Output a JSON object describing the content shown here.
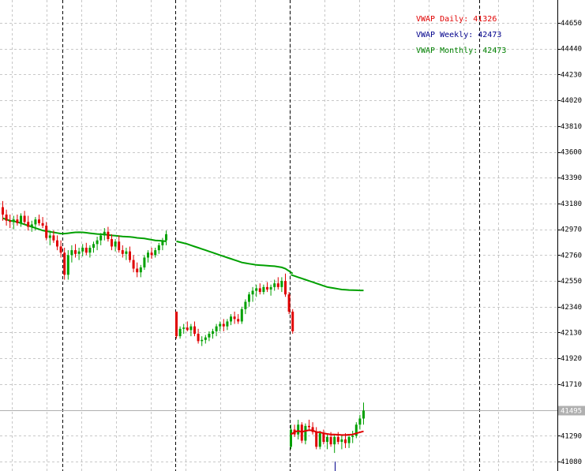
{
  "legend": [
    {
      "label": "VWAP Daily: 41326",
      "color": "#e00000"
    },
    {
      "label": "VWAP Weekly: 42473",
      "color": "#00008b"
    },
    {
      "label": "VWAP Monthly: 42473",
      "color": "#008000"
    }
  ],
  "current_price_label": "41495",
  "colors": {
    "bull": "#00a000",
    "bear": "#e00000",
    "vwap_daily": "#e00000",
    "vwap_monthly": "#00a000",
    "grid": "#c8c8c8",
    "session": "#000000",
    "price_line": "#b0b0b0",
    "price_label_bg": "#b0b0b0"
  },
  "chart_data": {
    "type": "candlestick",
    "y_ticks": [
      44650,
      44440,
      44230,
      44020,
      43810,
      43600,
      43390,
      43180,
      42970,
      42760,
      42550,
      42340,
      42130,
      41920,
      41710,
      41500,
      41290,
      41080
    ],
    "y_ticks_shown": [
      "44650",
      "44440",
      "44230",
      "44020",
      "43810",
      "43600",
      "43390",
      "43180",
      "42970",
      "42760",
      "42550",
      "42340",
      "42130",
      "41920",
      "41710",
      "41290",
      "41080"
    ],
    "ylim": [
      41050,
      44720
    ],
    "grid": true,
    "current_price": 41495,
    "session_breaks": [
      1,
      2,
      3,
      4
    ],
    "sessions": [
      {
        "candles": [
          [
            43150,
            43200,
            43040,
            43090
          ],
          [
            43090,
            43130,
            43000,
            43040
          ],
          [
            43040,
            43090,
            42980,
            43030
          ],
          [
            43030,
            43080,
            42970,
            43050
          ],
          [
            43050,
            43090,
            43000,
            43020
          ],
          [
            43020,
            43100,
            42990,
            43080
          ],
          [
            43080,
            43120,
            43010,
            43030
          ],
          [
            43030,
            43080,
            42960,
            42990
          ],
          [
            42990,
            43040,
            42950,
            43010
          ],
          [
            43010,
            43070,
            42960,
            43050
          ],
          [
            43050,
            43090,
            43000,
            43020
          ],
          [
            43020,
            43070,
            42980,
            43000
          ],
          [
            43000,
            43030,
            42880,
            42900
          ],
          [
            42900,
            42960,
            42840,
            42920
          ],
          [
            42920,
            42960,
            42860,
            42880
          ],
          [
            42880,
            42920,
            42800,
            42830
          ],
          [
            42830,
            42880,
            42740,
            42780
          ],
          [
            42780,
            42820,
            42560,
            42600
          ],
          [
            42600,
            42800,
            42560,
            42760
          ],
          [
            42760,
            42840,
            42700,
            42800
          ],
          [
            42800,
            42850,
            42740,
            42770
          ],
          [
            42770,
            42820,
            42720,
            42790
          ],
          [
            42790,
            42850,
            42750,
            42820
          ],
          [
            42820,
            42860,
            42760,
            42780
          ],
          [
            42780,
            42840,
            42740,
            42820
          ],
          [
            42820,
            42870,
            42780,
            42850
          ],
          [
            42850,
            42910,
            42800,
            42880
          ],
          [
            42880,
            42940,
            42840,
            42920
          ],
          [
            42920,
            42980,
            42880,
            42950
          ],
          [
            42950,
            42990,
            42870,
            42890
          ],
          [
            42890,
            42930,
            42800,
            42830
          ],
          [
            42830,
            42890,
            42790,
            42870
          ],
          [
            42870,
            42920,
            42780,
            42800
          ],
          [
            42800,
            42840,
            42740,
            42770
          ],
          [
            42770,
            42820,
            42720,
            42790
          ],
          [
            42790,
            42830,
            42700,
            42720
          ],
          [
            42720,
            42760,
            42620,
            42650
          ],
          [
            42650,
            42700,
            42580,
            42620
          ],
          [
            42620,
            42680,
            42580,
            42660
          ],
          [
            42660,
            42760,
            42640,
            42740
          ],
          [
            42740,
            42800,
            42700,
            42780
          ],
          [
            42780,
            42820,
            42730,
            42760
          ],
          [
            42760,
            42820,
            42740,
            42800
          ],
          [
            42800,
            42860,
            42770,
            42840
          ],
          [
            42840,
            42900,
            42800,
            42880
          ],
          [
            42880,
            42960,
            42840,
            42930
          ]
        ],
        "vwap_monthly": [
          43060,
          43050,
          43040,
          43035,
          43030,
          43020,
          43010,
          43000,
          42990,
          42980,
          42970,
          42960,
          42955,
          42950,
          42945,
          42940,
          42935,
          42935,
          42938,
          42942,
          42945,
          42946,
          42945,
          42942,
          42938,
          42935,
          42932,
          42930,
          42928,
          42925,
          42920,
          42918,
          42915,
          42912,
          42910,
          42908,
          42905,
          42900,
          42898,
          42895,
          42890,
          42885,
          42880,
          42878,
          42875,
          42872
        ]
      },
      {
        "candles": [
          [
            42300,
            42300,
            42080,
            42100
          ],
          [
            42100,
            42180,
            42080,
            42160
          ],
          [
            42160,
            42200,
            42120,
            42170
          ],
          [
            42170,
            42220,
            42140,
            42150
          ],
          [
            42150,
            42200,
            42100,
            42180
          ],
          [
            42180,
            42220,
            42100,
            42120
          ],
          [
            42120,
            42160,
            42040,
            42060
          ],
          [
            42060,
            42100,
            42020,
            42070
          ],
          [
            42070,
            42110,
            42040,
            42090
          ],
          [
            42090,
            42140,
            42060,
            42120
          ],
          [
            42120,
            42160,
            42080,
            42140
          ],
          [
            42140,
            42200,
            42100,
            42180
          ],
          [
            42180,
            42220,
            42140,
            42200
          ],
          [
            42200,
            42240,
            42140,
            42180
          ],
          [
            42180,
            42240,
            42150,
            42220
          ],
          [
            42220,
            42280,
            42190,
            42260
          ],
          [
            42260,
            42300,
            42200,
            42240
          ],
          [
            42240,
            42280,
            42200,
            42220
          ],
          [
            42220,
            42340,
            42200,
            42320
          ],
          [
            42320,
            42400,
            42280,
            42380
          ],
          [
            42380,
            42460,
            42340,
            42440
          ],
          [
            42440,
            42500,
            42380,
            42470
          ],
          [
            42470,
            42520,
            42420,
            42490
          ],
          [
            42490,
            42530,
            42440,
            42460
          ],
          [
            42460,
            42520,
            42440,
            42500
          ],
          [
            42500,
            42540,
            42460,
            42480
          ],
          [
            42480,
            42520,
            42430,
            42500
          ],
          [
            42500,
            42560,
            42470,
            42530
          ],
          [
            42530,
            42580,
            42480,
            42500
          ],
          [
            42500,
            42580,
            42460,
            42550
          ],
          [
            42550,
            42610,
            42420,
            42440
          ],
          [
            42440,
            42460,
            42280,
            42300
          ],
          [
            42300,
            42320,
            42120,
            42140
          ]
        ],
        "vwap_monthly": [
          42872,
          42865,
          42858,
          42850,
          42840,
          42830,
          42820,
          42810,
          42800,
          42790,
          42780,
          42770,
          42760,
          42750,
          42740,
          42730,
          42720,
          42710,
          42700,
          42695,
          42690,
          42685,
          42680,
          42678,
          42676,
          42674,
          42672,
          42670,
          42665,
          42660,
          42650,
          42630,
          42610
        ]
      },
      {
        "candles": [
          [
            41200,
            41380,
            41180,
            41340
          ],
          [
            41340,
            41380,
            41280,
            41300
          ],
          [
            41300,
            41420,
            41260,
            41380
          ],
          [
            41380,
            41400,
            41230,
            41250
          ],
          [
            41250,
            41390,
            41220,
            41370
          ],
          [
            41370,
            41420,
            41330,
            41360
          ],
          [
            41360,
            41400,
            41300,
            41320
          ],
          [
            41320,
            41360,
            41180,
            41200
          ],
          [
            41200,
            41330,
            41180,
            41310
          ],
          [
            41310,
            41340,
            41220,
            41240
          ],
          [
            41240,
            41300,
            41180,
            41280
          ],
          [
            41280,
            41320,
            41200,
            41220
          ],
          [
            41220,
            41300,
            41150,
            41280
          ],
          [
            41280,
            41320,
            41220,
            41240
          ],
          [
            41240,
            41300,
            41180,
            41260
          ],
          [
            41260,
            41310,
            41190,
            41230
          ],
          [
            41230,
            41300,
            41190,
            41280
          ],
          [
            41280,
            41330,
            41230,
            41290
          ],
          [
            41290,
            41400,
            41270,
            41380
          ],
          [
            41380,
            41460,
            41340,
            41430
          ],
          [
            41430,
            41560,
            41380,
            41495
          ]
        ],
        "vwap_monthly": [
          42600,
          42590,
          42580,
          42570,
          42560,
          42550,
          42540,
          42530,
          42520,
          42510,
          42500,
          42495,
          42490,
          42485,
          42480,
          42478,
          42476,
          42475,
          42474,
          42473,
          42473
        ],
        "vwap_daily": [
          41300,
          41320,
          41330,
          41320,
          41330,
          41335,
          41333,
          41320,
          41318,
          41310,
          41305,
          41300,
          41300,
          41298,
          41296,
          41296,
          41298,
          41300,
          41310,
          41318,
          41326
        ]
      }
    ]
  }
}
